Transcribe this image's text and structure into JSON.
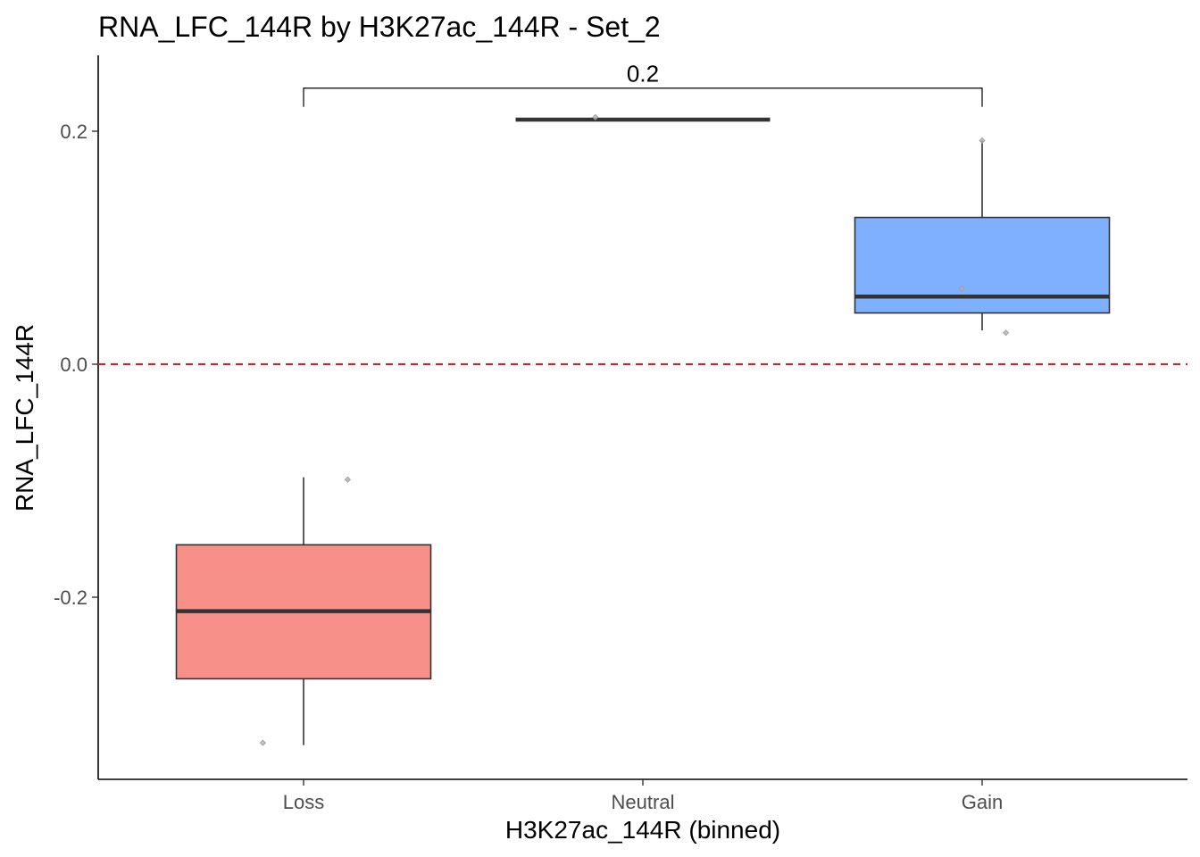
{
  "chart_data": {
    "type": "box",
    "title": "RNA_LFC_144R by H3K27ac_144R - Set_2",
    "xlabel": "H3K27ac_144R (binned)",
    "ylabel": "RNA_LFC_144R",
    "categories": [
      "Loss",
      "Neutral",
      "Gain"
    ],
    "ylim": [
      -0.355,
      0.26
    ],
    "yticks": [
      -0.2,
      0.0,
      0.2
    ],
    "ytick_labels": [
      "-0.2",
      "0.0",
      "0.2"
    ],
    "reference_line": {
      "y": 0.0,
      "color": "#e41a1c",
      "style": "dashed"
    },
    "boxes": [
      {
        "category": "Loss",
        "fill": "#f8908a",
        "whisker_low": -0.327,
        "q1": -0.27,
        "median": -0.212,
        "q3": -0.155,
        "whisker_high": -0.097
      },
      {
        "category": "Neutral",
        "fill": "#7fc97f",
        "whisker_low": 0.21,
        "q1": 0.21,
        "median": 0.21,
        "q3": 0.21,
        "whisker_high": 0.21
      },
      {
        "category": "Gain",
        "fill": "#7fb0ff",
        "whisker_low": 0.029,
        "q1": 0.044,
        "median": 0.058,
        "q3": 0.126,
        "whisker_high": 0.192
      }
    ],
    "points": [
      {
        "category": "Loss",
        "jitter": 0.13,
        "y": -0.099
      },
      {
        "category": "Loss",
        "jitter": -0.12,
        "y": -0.325
      },
      {
        "category": "Neutral",
        "jitter": -0.14,
        "y": 0.212
      },
      {
        "category": "Gain",
        "jitter": -0.06,
        "y": 0.065
      },
      {
        "category": "Gain",
        "jitter": 0.07,
        "y": 0.027
      },
      {
        "category": "Gain",
        "jitter": 0.0,
        "y": 0.192
      }
    ],
    "comparison": {
      "from": "Loss",
      "to": "Gain",
      "label": "0.2",
      "y": 0.237,
      "tip_bottom": 0.221
    }
  }
}
